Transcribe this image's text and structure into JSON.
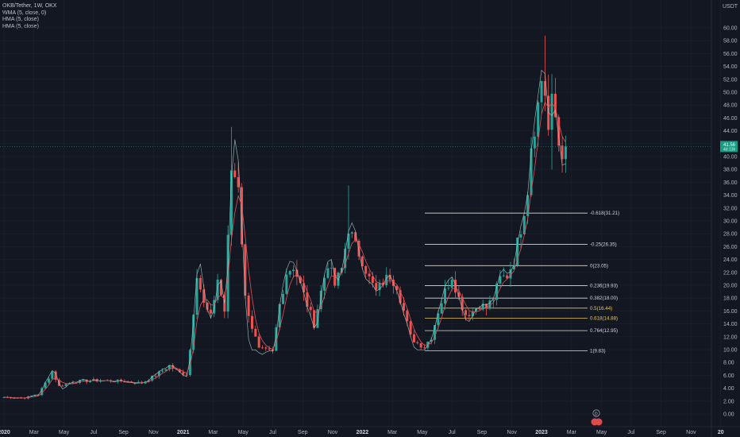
{
  "header": {
    "symbol_line": "OKB/Tether, 1W, OKX",
    "indicators": [
      "WMA (5, close, 0)",
      "HMA (5, close)",
      "HMA (5, close)"
    ],
    "currency": "USDT"
  },
  "price_tag": {
    "value": "41.56",
    "sub": "4d 13h"
  },
  "event_badges": [
    "D"
  ],
  "colors": {
    "up": "#26a69a",
    "down": "#ef5350",
    "wma": "#e0525a",
    "hma": "#a7c7c0",
    "fib_line": "#d9d9d9",
    "fib_gold": "#e8c75a",
    "bg": "#131722"
  },
  "chart_data": {
    "type": "candlestick",
    "title": "OKB/Tether, 1W, OKX",
    "ylabel": "USDT",
    "ylim": [
      -1.0,
      61.5
    ],
    "y_ticks": [
      "0.00",
      "2.00",
      "4.00",
      "6.00",
      "8.00",
      "10.00",
      "12.00",
      "14.00",
      "16.00",
      "18.00",
      "20.00",
      "22.00",
      "24.00",
      "26.00",
      "28.00",
      "30.00",
      "32.00",
      "34.00",
      "36.00",
      "38.00",
      "40.00",
      "42.00",
      "44.00",
      "46.00",
      "48.00",
      "50.00",
      "52.00",
      "54.00",
      "56.00",
      "58.00",
      "60.00"
    ],
    "x_ticks": [
      "2020",
      "Mar",
      "May",
      "Jul",
      "Sep",
      "Nov",
      "2021",
      "Mar",
      "May",
      "Jul",
      "Sep",
      "Nov",
      "2022",
      "Mar",
      "May",
      "Jul",
      "Sep",
      "Nov",
      "2023",
      "Mar",
      "May",
      "Jul",
      "Sep",
      "Nov",
      "20"
    ],
    "x_tick_weeks": [
      0,
      8.7,
      17.4,
      26,
      34.7,
      43.4,
      52,
      60.7,
      69.4,
      78,
      86.7,
      95.4,
      104,
      112.7,
      121.4,
      130,
      138.7,
      147.4,
      156,
      164.7,
      173.4,
      182,
      190.7,
      199.4,
      208
    ],
    "series": [
      {
        "values": []
      }
    ],
    "fib_levels": [
      {
        "label": "-0.618(31.21)",
        "value": 31.21,
        "color": "#d9d9d9"
      },
      {
        "label": "-0.25(26.35)",
        "value": 26.35,
        "color": "#d9d9d9"
      },
      {
        "label": "0(23.05)",
        "value": 23.05,
        "color": "#d9d9d9"
      },
      {
        "label": "0.236(19.93)",
        "value": 19.93,
        "color": "#d9d9d9"
      },
      {
        "label": "0.382(18.00)",
        "value": 18.0,
        "color": "#d9d9d9"
      },
      {
        "label": "0.5(16.44)",
        "value": 16.44,
        "color": "#e8c75a"
      },
      {
        "label": "0.618(14.88)",
        "value": 14.88,
        "color": "#e8c75a"
      },
      {
        "label": "0.764(12.95)",
        "value": 12.95,
        "color": "#d9d9d9"
      },
      {
        "label": "1(9.83)",
        "value": 9.83,
        "color": "#d9d9d9"
      }
    ],
    "anchors": [
      [
        0,
        2.6
      ],
      [
        6,
        2.5
      ],
      [
        10,
        3.0
      ],
      [
        14,
        6.6
      ],
      [
        16,
        4.3
      ],
      [
        20,
        5.0
      ],
      [
        26,
        5.2
      ],
      [
        34,
        5.1
      ],
      [
        40,
        4.8
      ],
      [
        44,
        6.0
      ],
      [
        48,
        7.5
      ],
      [
        51,
        6.4
      ],
      [
        53,
        6.2
      ],
      [
        54,
        10.0
      ],
      [
        56,
        22.0
      ],
      [
        58,
        17.0
      ],
      [
        60,
        15.0
      ],
      [
        62,
        21.0
      ],
      [
        64,
        16.0
      ],
      [
        66,
        38.0
      ],
      [
        68,
        36.0
      ],
      [
        70,
        18.0
      ],
      [
        72,
        13.5
      ],
      [
        74,
        10.0
      ],
      [
        78,
        9.6
      ],
      [
        80,
        17.0
      ],
      [
        82,
        22.0
      ],
      [
        84,
        23.0
      ],
      [
        86,
        20.0
      ],
      [
        88,
        17.0
      ],
      [
        90,
        14.0
      ],
      [
        92,
        19.0
      ],
      [
        94,
        23.5
      ],
      [
        96,
        20.0
      ],
      [
        98,
        22.5
      ],
      [
        100,
        29.0
      ],
      [
        102,
        26.0
      ],
      [
        104,
        24.0
      ],
      [
        106,
        21.0
      ],
      [
        108,
        19.0
      ],
      [
        110,
        20.5
      ],
      [
        112,
        21.5
      ],
      [
        114,
        20.0
      ],
      [
        116,
        16.0
      ],
      [
        118,
        12.0
      ],
      [
        120,
        11.0
      ],
      [
        122,
        10.5
      ],
      [
        124,
        12.0
      ],
      [
        126,
        16.0
      ],
      [
        128,
        19.0
      ],
      [
        130,
        21.5
      ],
      [
        132,
        18.0
      ],
      [
        134,
        15.5
      ],
      [
        136,
        16.0
      ],
      [
        138,
        17.0
      ],
      [
        140,
        16.5
      ],
      [
        142,
        18.0
      ],
      [
        144,
        21.0
      ],
      [
        146,
        21.5
      ],
      [
        148,
        24.0
      ],
      [
        150,
        29.0
      ],
      [
        152,
        35.0
      ],
      [
        153,
        42.0
      ],
      [
        155,
        48.0
      ],
      [
        156,
        52.0
      ],
      [
        157,
        50.0
      ],
      [
        158,
        44.0
      ],
      [
        159,
        48.0
      ],
      [
        160,
        46.0
      ],
      [
        161,
        42.0
      ],
      [
        162,
        41.0
      ],
      [
        163,
        41.56
      ]
    ]
  }
}
